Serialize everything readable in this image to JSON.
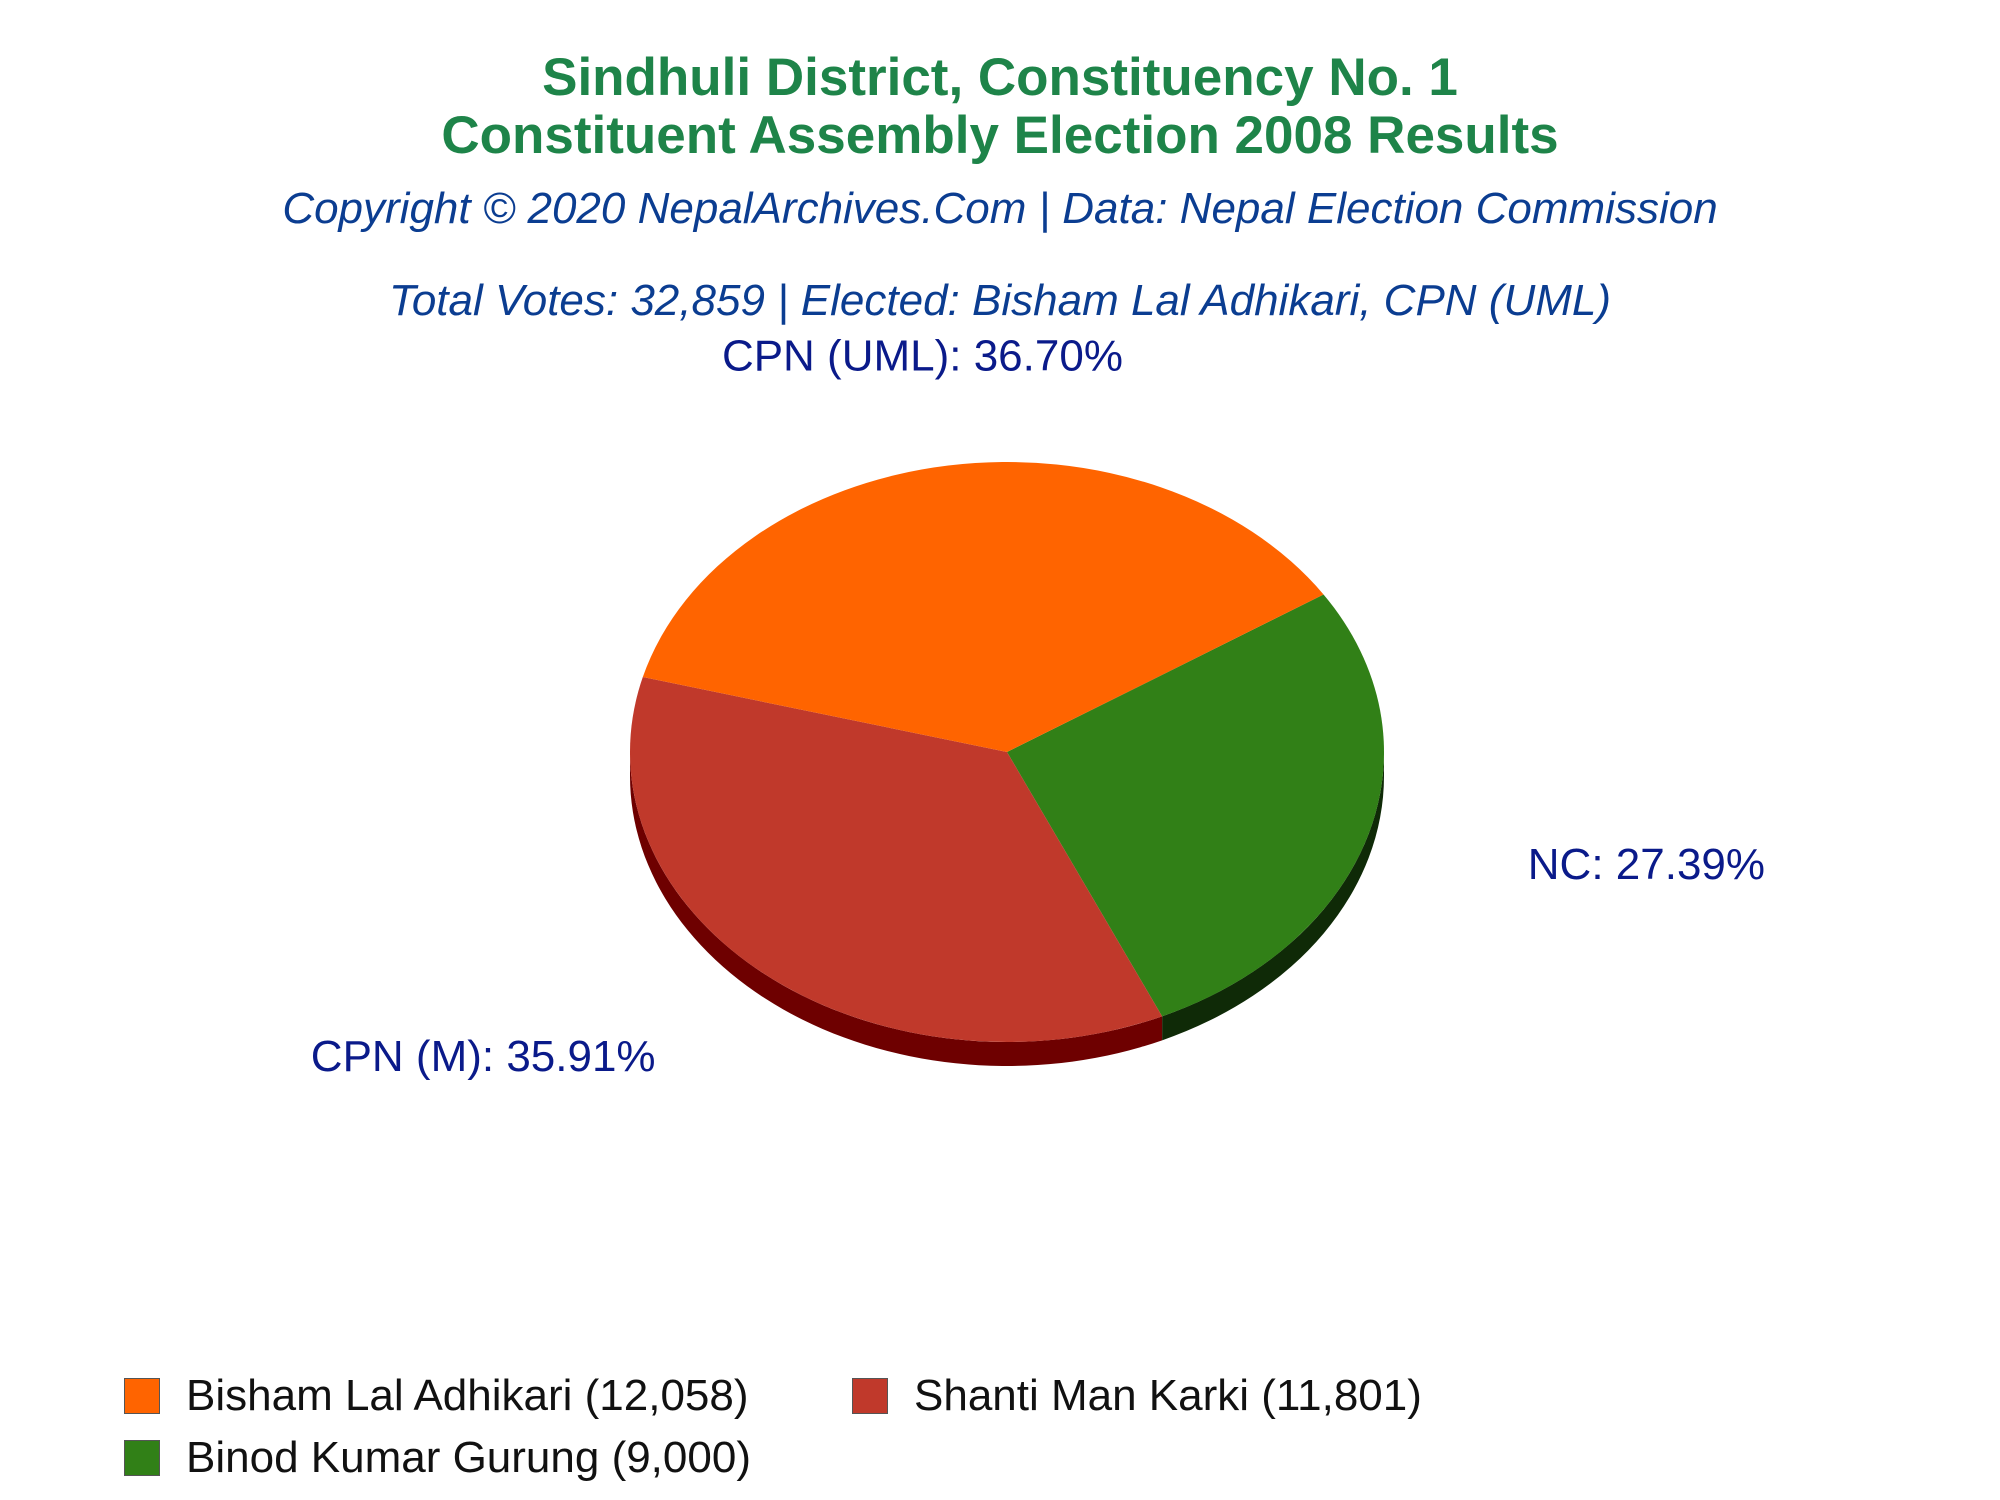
{
  "title": {
    "line1": "Sindhuli District, Constituency No. 1",
    "line2": "Constituent Assembly Election 2008 Results"
  },
  "subtitle": {
    "copyright": "Copyright © 2020 NepalArchives.Com | Data: Nepal Election Commission",
    "summary": "Total Votes: 32,859 | Elected: Bisham Lal Adhikari, CPN (UML)"
  },
  "colors": {
    "title": "#1e8449",
    "subtitle": "#0b3d91",
    "slice_label": "#0a1a8a"
  },
  "chart_data": {
    "type": "pie",
    "total_votes": 32859,
    "slices": [
      {
        "party": "CPN (UML)",
        "candidate": "Bisham Lal Adhikari",
        "votes": 12058,
        "percent": 36.7,
        "label": "CPN (UML): 36.70%",
        "legend": "Bisham Lal Adhikari (12,058)",
        "color": "#ff6400",
        "side_color": "#a33f00"
      },
      {
        "party": "NC",
        "candidate": "Binod Kumar Gurung",
        "votes": 9000,
        "percent": 27.39,
        "label": "NC: 27.39%",
        "legend": "Binod Kumar Gurung (9,000)",
        "color": "#318017",
        "side_color": "#0f2a07"
      },
      {
        "party": "CPN (M)",
        "candidate": "Shanti Man Karki",
        "votes": 11801,
        "percent": 35.91,
        "label": "CPN (M): 35.91%",
        "legend": "Shanti Man Karki (11,801)",
        "color": "#c0392b",
        "side_color": "#6e0000"
      }
    ],
    "legend_order": [
      0,
      2,
      1
    ],
    "legend_position": "bottom-left"
  }
}
